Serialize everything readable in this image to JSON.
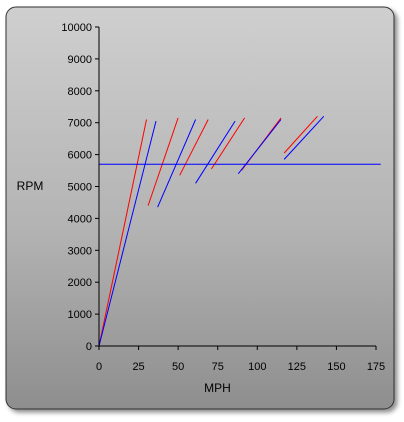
{
  "chart_data": {
    "type": "line",
    "title": "",
    "xlabel": "MPH",
    "ylabel": "RPM",
    "xlim": [
      0,
      175
    ],
    "ylim": [
      0,
      10000
    ],
    "x_ticks": [
      0,
      25,
      50,
      75,
      100,
      125,
      150,
      175
    ],
    "y_ticks": [
      0,
      1000,
      2000,
      3000,
      4000,
      5000,
      6000,
      7000,
      8000,
      9000,
      10000
    ],
    "grid": false,
    "legend": "none",
    "colors": {
      "red_series": "#ff0000",
      "blue_series": "#0000ff",
      "background": "#bdbdbd"
    },
    "series": [
      {
        "color": "red",
        "x": [
          0,
          30
        ],
        "y": [
          0,
          7100
        ]
      },
      {
        "color": "red",
        "x": [
          31,
          50
        ],
        "y": [
          4400,
          7150
        ]
      },
      {
        "color": "red",
        "x": [
          51,
          69
        ],
        "y": [
          5350,
          7100
        ]
      },
      {
        "color": "red",
        "x": [
          71,
          92
        ],
        "y": [
          5550,
          7150
        ]
      },
      {
        "color": "red",
        "x": [
          90,
          115
        ],
        "y": [
          5500,
          7150
        ]
      },
      {
        "color": "red",
        "x": [
          117,
          138
        ],
        "y": [
          6050,
          7200
        ]
      },
      {
        "color": "blue",
        "x": [
          0,
          36
        ],
        "y": [
          0,
          7050
        ]
      },
      {
        "color": "blue",
        "x": [
          37,
          61
        ],
        "y": [
          4350,
          7100
        ]
      },
      {
        "color": "blue",
        "x": [
          61,
          86
        ],
        "y": [
          5100,
          7050
        ]
      },
      {
        "color": "blue",
        "x": [
          88,
          115
        ],
        "y": [
          5400,
          7100
        ]
      },
      {
        "color": "blue",
        "x": [
          117,
          142
        ],
        "y": [
          5850,
          7200
        ]
      },
      {
        "color": "blue",
        "x": [
          0,
          178
        ],
        "y": [
          5700,
          5700
        ]
      }
    ]
  }
}
